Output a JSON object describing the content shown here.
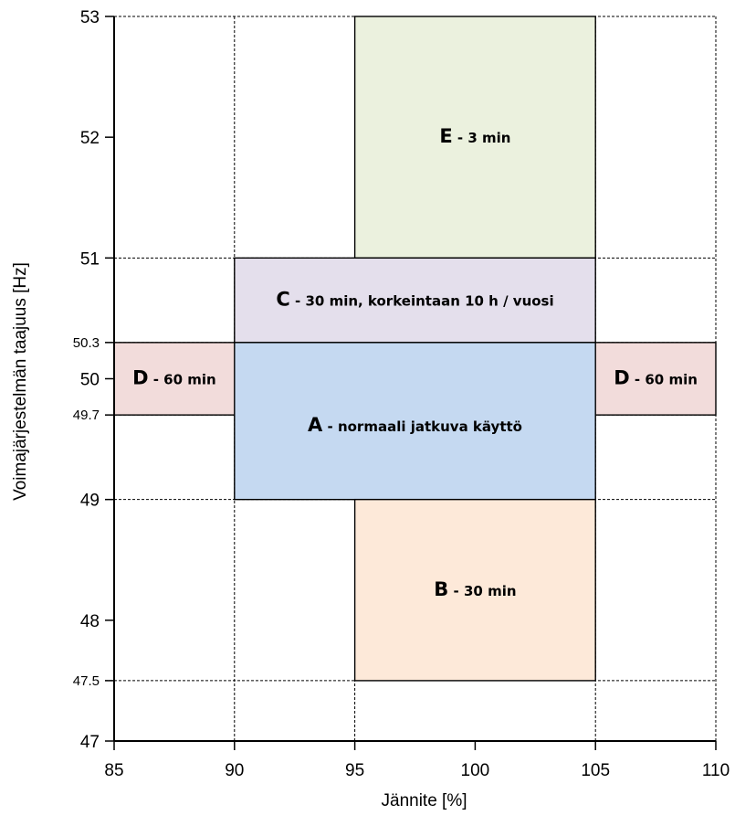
{
  "chart_data": {
    "type": "region",
    "xlabel": "Jännite [%]",
    "ylabel": "Voimajärjestelmän taajuus [Hz]",
    "xlim": [
      85,
      110
    ],
    "ylim": [
      47,
      53
    ],
    "x_ticks": [
      85,
      90,
      95,
      100,
      105,
      110
    ],
    "y_ticks": [
      47,
      47.5,
      48,
      49,
      49.7,
      50,
      50.3,
      51,
      52,
      53
    ],
    "grid": "dashed lines at region boundaries",
    "regions": [
      {
        "id": "E",
        "letter": "E",
        "text": " - 3 min",
        "x": [
          95,
          105
        ],
        "y": [
          51,
          53
        ],
        "color": "#ebf1de"
      },
      {
        "id": "C",
        "letter": "C",
        "text": " - 30 min, korkeintaan 10 h / vuosi",
        "x": [
          90,
          105
        ],
        "y": [
          50.3,
          51
        ],
        "color": "#e4dfec"
      },
      {
        "id": "A",
        "letter": "A",
        "text": " - normaali jatkuva käyttö",
        "x": [
          90,
          105
        ],
        "y": [
          49,
          50.3
        ],
        "color": "#c5d9f1"
      },
      {
        "id": "D-left",
        "letter": "D",
        "text": " - 60 min",
        "x": [
          85,
          90
        ],
        "y": [
          49.7,
          50.3
        ],
        "color": "#f2dcdb"
      },
      {
        "id": "D-right",
        "letter": "D",
        "text": " - 60 min",
        "x": [
          105,
          110
        ],
        "y": [
          49.7,
          50.3
        ],
        "color": "#f2dcdb"
      },
      {
        "id": "B",
        "letter": "B",
        "text": " - 30 min",
        "x": [
          95,
          105
        ],
        "y": [
          47.5,
          49
        ],
        "color": "#fde9d9"
      }
    ]
  }
}
